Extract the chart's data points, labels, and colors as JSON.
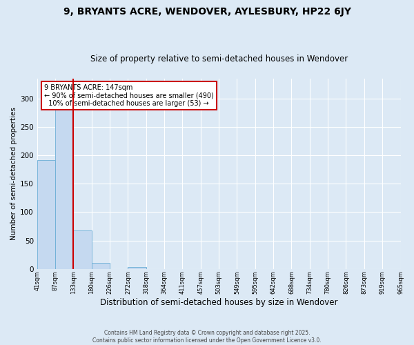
{
  "title": "9, BRYANTS ACRE, WENDOVER, AYLESBURY, HP22 6JY",
  "subtitle": "Size of property relative to semi-detached houses in Wendover",
  "xlabel": "Distribution of semi-detached houses by size in Wendover",
  "ylabel": "Number of semi-detached properties",
  "bar_values": [
    192,
    283,
    68,
    10,
    0,
    3,
    0,
    0,
    0,
    0,
    0,
    0,
    0,
    0,
    0,
    0,
    0,
    0,
    0,
    0
  ],
  "categories": [
    "41sqm",
    "87sqm",
    "133sqm",
    "180sqm",
    "226sqm",
    "272sqm",
    "318sqm",
    "364sqm",
    "411sqm",
    "457sqm",
    "503sqm",
    "549sqm",
    "595sqm",
    "642sqm",
    "688sqm",
    "734sqm",
    "780sqm",
    "826sqm",
    "873sqm",
    "919sqm",
    "965sqm"
  ],
  "bar_color": "#c5d9f0",
  "bar_edge_color": "#6baed6",
  "red_line_x": 2,
  "annotation_line1": "9 BRYANTS ACRE: 147sqm",
  "annotation_line2": "← 90% of semi-detached houses are smaller (490)",
  "annotation_line3": "  10% of semi-detached houses are larger (53) →",
  "annotation_box_facecolor": "#ffffff",
  "annotation_box_edgecolor": "#cc0000",
  "red_line_color": "#cc0000",
  "ylim": [
    0,
    335
  ],
  "yticks": [
    0,
    50,
    100,
    150,
    200,
    250,
    300
  ],
  "background_color": "#dce9f5",
  "grid_color": "#ffffff",
  "footer_line1": "Contains HM Land Registry data © Crown copyright and database right 2025.",
  "footer_line2": "Contains public sector information licensed under the Open Government Licence v3.0.",
  "title_fontsize": 10,
  "subtitle_fontsize": 8.5,
  "ylabel_fontsize": 7.5,
  "xlabel_fontsize": 8.5
}
